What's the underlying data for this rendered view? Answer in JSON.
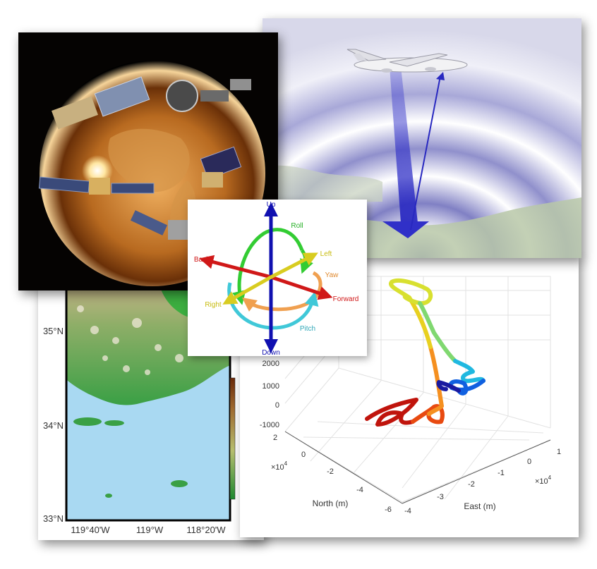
{
  "map": {
    "lat_labels": [
      "35°N",
      "34°N",
      "33°N"
    ],
    "lon_labels": [
      "119°40'W",
      "119°W",
      "118°20'W"
    ]
  },
  "attitude": {
    "up": "Up",
    "down": "Down",
    "back": "Back",
    "forward": "Forward",
    "left": "Left",
    "right": "Right",
    "roll": "Roll",
    "yaw": "Yaw",
    "pitch": "Pitch"
  },
  "plot3d": {
    "z_ticks": [
      "2000",
      "1000",
      "0",
      "-1000"
    ],
    "north_ticks": [
      "2",
      "0",
      "-2",
      "-4",
      "-6"
    ],
    "east_ticks": [
      "-4",
      "-3",
      "-2",
      "-1",
      "0",
      "1"
    ],
    "north_label": "North (m)",
    "east_label": "East (m)",
    "north_exp_base": "×10",
    "north_exp_pow": "4",
    "east_exp_base": "×10",
    "east_exp_pow": "4"
  },
  "colors": {
    "sea": "#a9d9f2",
    "roll": "#33cc33",
    "yaw": "#f0a050",
    "pitch": "#40c8d8",
    "forward": "#d01818",
    "left": "#d8cc20",
    "up": "#1010b0"
  }
}
